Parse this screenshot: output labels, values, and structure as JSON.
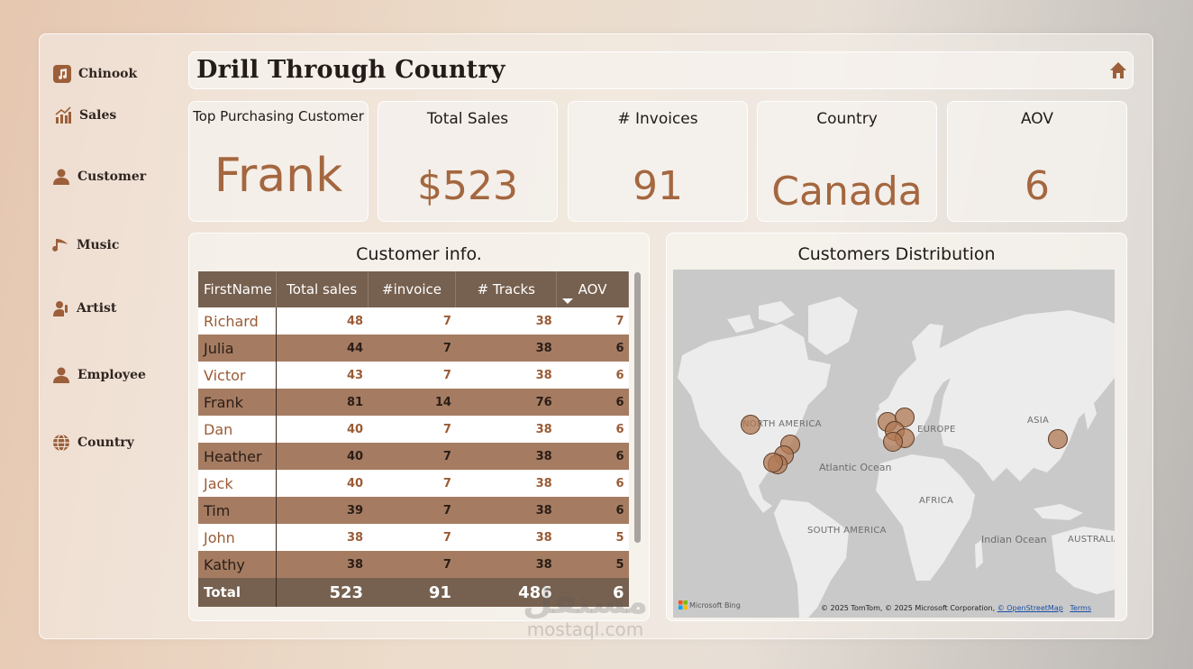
{
  "sidebar": {
    "items": [
      {
        "label": "Chinook",
        "icon": "music-note-icon"
      },
      {
        "label": "Sales",
        "icon": "bar-chart-icon"
      },
      {
        "label": "Customer",
        "icon": "person-icon"
      },
      {
        "label": "Music",
        "icon": "music-icon"
      },
      {
        "label": "Artist",
        "icon": "artist-icon"
      },
      {
        "label": "Employee",
        "icon": "employee-icon"
      },
      {
        "label": "Country",
        "icon": "globe-icon"
      }
    ]
  },
  "header": {
    "title": "Drill Through Country",
    "home_icon": "home-icon"
  },
  "kpis": {
    "top_customer": {
      "label": "Top Purchasing Customer",
      "value": "Frank"
    },
    "total_sales": {
      "label": "Total Sales",
      "value": "$523"
    },
    "invoices": {
      "label": "# Invoices",
      "value": "91"
    },
    "country": {
      "label": "Country",
      "value": "Canada"
    },
    "aov": {
      "label": "AOV",
      "value": "6"
    }
  },
  "customer_table": {
    "title": "Customer info.",
    "columns": [
      "FirstName",
      "Total sales",
      "#invoice",
      "# Tracks",
      "AOV"
    ],
    "sorted_column": "AOV",
    "rows": [
      [
        "Richard",
        "48",
        "7",
        "38",
        "7"
      ],
      [
        "Julia",
        "44",
        "7",
        "38",
        "6"
      ],
      [
        "Victor",
        "43",
        "7",
        "38",
        "6"
      ],
      [
        "Frank",
        "81",
        "14",
        "76",
        "6"
      ],
      [
        "Dan",
        "40",
        "7",
        "38",
        "6"
      ],
      [
        "Heather",
        "40",
        "7",
        "38",
        "6"
      ],
      [
        "Jack",
        "40",
        "7",
        "38",
        "6"
      ],
      [
        "Tim",
        "39",
        "7",
        "38",
        "6"
      ],
      [
        "John",
        "38",
        "7",
        "38",
        "5"
      ],
      [
        "Kathy",
        "38",
        "7",
        "38",
        "5"
      ]
    ],
    "total": [
      "Total",
      "523",
      "91",
      "486",
      "6"
    ]
  },
  "map_panel": {
    "title": "Customers Distribution",
    "labels": {
      "north_america": "NORTH AMERICA",
      "europe": "EUROPE",
      "asia": "ASIA",
      "atlantic": "Atlantic Ocean",
      "africa": "AFRICA",
      "south_america": "SOUTH AMERICA",
      "indian": "Indian Ocean",
      "australia": "AUSTRALIA"
    },
    "bing": "Microsoft Bing",
    "copyright_prefix": "© 2025 TomTom, © 2025 Microsoft Corporation,",
    "osm_link": "© OpenStreetMap",
    "terms_link": "Terms"
  },
  "watermark": {
    "arabic": "مستقل",
    "latin": "mostaql.com"
  },
  "colors": {
    "accent": "#a4673f",
    "header_row": "#76604f",
    "alt_row": "#a57c62",
    "bubble": "#b07854"
  }
}
